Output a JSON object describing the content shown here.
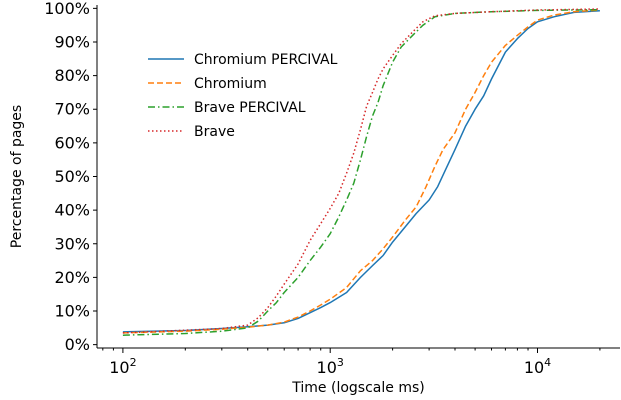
{
  "chart_data": {
    "type": "line",
    "xlabel": "Time (logscale ms)",
    "ylabel": "Percentage of pages",
    "xscale": "log",
    "xlim": [
      75,
      25000
    ],
    "ylim": [
      -1,
      101
    ],
    "grid": false,
    "legend_position": "upper-left",
    "x_tick_values": [
      100,
      1000,
      10000
    ],
    "x_ticks": [
      {
        "base": "10",
        "exp": "2"
      },
      {
        "base": "10",
        "exp": "3"
      },
      {
        "base": "10",
        "exp": "4"
      }
    ],
    "y_tick_values": [
      0,
      10,
      20,
      30,
      40,
      50,
      60,
      70,
      80,
      90,
      100
    ],
    "y_ticks": [
      "0%",
      "10%",
      "20%",
      "30%",
      "40%",
      "50%",
      "60%",
      "70%",
      "80%",
      "90%",
      "100%"
    ],
    "series": [
      {
        "name": "Chromium PERCIVAL",
        "color": "#1f77b4",
        "dash": "solid",
        "points": [
          [
            100,
            3.8
          ],
          [
            200,
            4.2
          ],
          [
            300,
            4.8
          ],
          [
            400,
            5.3
          ],
          [
            500,
            5.8
          ],
          [
            600,
            6.5
          ],
          [
            700,
            7.8
          ],
          [
            800,
            9.5
          ],
          [
            900,
            11
          ],
          [
            1000,
            12.5
          ],
          [
            1200,
            15.5
          ],
          [
            1400,
            20
          ],
          [
            1600,
            23.5
          ],
          [
            1800,
            26.5
          ],
          [
            2000,
            30.5
          ],
          [
            2300,
            35
          ],
          [
            2600,
            39
          ],
          [
            3000,
            43
          ],
          [
            3300,
            47
          ],
          [
            3600,
            52
          ],
          [
            4000,
            58
          ],
          [
            4500,
            65
          ],
          [
            5000,
            70
          ],
          [
            5500,
            74
          ],
          [
            6000,
            79
          ],
          [
            7000,
            87
          ],
          [
            8000,
            91
          ],
          [
            9000,
            94
          ],
          [
            10000,
            96
          ],
          [
            12000,
            97.5
          ],
          [
            15000,
            98.8
          ],
          [
            20000,
            99.3
          ]
        ]
      },
      {
        "name": "Chromium",
        "color": "#ff7f0e",
        "dash": "dashed",
        "points": [
          [
            100,
            3.5
          ],
          [
            200,
            4.0
          ],
          [
            300,
            4.6
          ],
          [
            400,
            5.2
          ],
          [
            500,
            5.8
          ],
          [
            600,
            6.7
          ],
          [
            700,
            8.2
          ],
          [
            800,
            10
          ],
          [
            900,
            11.8
          ],
          [
            1000,
            13.5
          ],
          [
            1200,
            17
          ],
          [
            1400,
            22
          ],
          [
            1600,
            25
          ],
          [
            1800,
            28.5
          ],
          [
            2000,
            32
          ],
          [
            2300,
            37
          ],
          [
            2600,
            41
          ],
          [
            2900,
            47
          ],
          [
            3200,
            53
          ],
          [
            3500,
            58
          ],
          [
            4000,
            63
          ],
          [
            4500,
            70
          ],
          [
            5000,
            75
          ],
          [
            5500,
            80
          ],
          [
            6000,
            84
          ],
          [
            7000,
            89
          ],
          [
            8000,
            92
          ],
          [
            9000,
            94.5
          ],
          [
            10000,
            96.5
          ],
          [
            12000,
            98
          ],
          [
            15000,
            99
          ],
          [
            20000,
            99.5
          ]
        ]
      },
      {
        "name": "Brave PERCIVAL",
        "color": "#2ca02c",
        "dash": "dashdot",
        "points": [
          [
            100,
            2.8
          ],
          [
            200,
            3.3
          ],
          [
            300,
            4.0
          ],
          [
            400,
            5.0
          ],
          [
            450,
            7
          ],
          [
            500,
            10
          ],
          [
            550,
            12.5
          ],
          [
            600,
            15.5
          ],
          [
            700,
            20
          ],
          [
            800,
            25
          ],
          [
            900,
            29
          ],
          [
            1000,
            33
          ],
          [
            1100,
            38
          ],
          [
            1200,
            43
          ],
          [
            1300,
            48
          ],
          [
            1400,
            55
          ],
          [
            1500,
            62
          ],
          [
            1600,
            68
          ],
          [
            1700,
            72
          ],
          [
            1800,
            77
          ],
          [
            2000,
            84
          ],
          [
            2200,
            88.5
          ],
          [
            2500,
            92
          ],
          [
            2800,
            95
          ],
          [
            3200,
            97.5
          ],
          [
            4000,
            98.5
          ],
          [
            6000,
            99
          ],
          [
            10000,
            99.4
          ],
          [
            20000,
            99.6
          ]
        ]
      },
      {
        "name": "Brave",
        "color": "#d62728",
        "dash": "dotted",
        "points": [
          [
            100,
            3.5
          ],
          [
            200,
            4.3
          ],
          [
            300,
            4.8
          ],
          [
            400,
            5.8
          ],
          [
            450,
            8
          ],
          [
            500,
            11
          ],
          [
            550,
            14.5
          ],
          [
            600,
            18
          ],
          [
            700,
            24
          ],
          [
            800,
            31
          ],
          [
            900,
            36
          ],
          [
            1000,
            40.5
          ],
          [
            1100,
            45
          ],
          [
            1200,
            51
          ],
          [
            1300,
            57
          ],
          [
            1400,
            64
          ],
          [
            1500,
            71
          ],
          [
            1600,
            75
          ],
          [
            1700,
            79
          ],
          [
            1800,
            82
          ],
          [
            2000,
            86
          ],
          [
            2200,
            89.5
          ],
          [
            2500,
            93
          ],
          [
            2800,
            96
          ],
          [
            3200,
            97.8
          ],
          [
            4000,
            98.5
          ],
          [
            6000,
            99
          ],
          [
            10000,
            99.5
          ],
          [
            20000,
            99.8
          ]
        ]
      }
    ]
  }
}
